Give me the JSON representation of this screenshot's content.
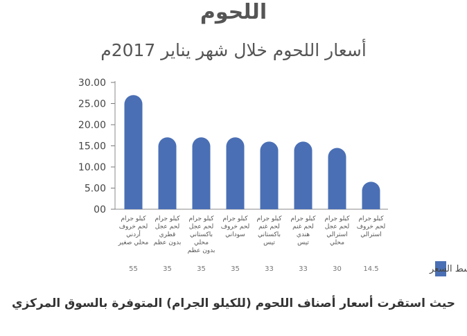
{
  "chart_data": {
    "type": "bar",
    "title": "اللحوم",
    "subtitle": "أسعار اللحوم خلال شهر يناير 2017م",
    "categories": [
      [
        "كيلو جرام",
        "لحم خروف",
        "أردني",
        "محلي صغير"
      ],
      [
        "كيلو جرام",
        "لحم عجل",
        "قطري",
        "بدون عظم"
      ],
      [
        "كيلو جرام",
        "لحم عجل",
        "باكستاني",
        "محلي",
        "بدون عظم"
      ],
      [
        "كيلو جرام",
        "لحم خروف",
        "سوداني"
      ],
      [
        "كيلو جرام",
        "لحم غنم",
        "باكستاني",
        "تيس"
      ],
      [
        "كيلو جرام",
        "لحم غنم",
        "هندي",
        "تيس"
      ],
      [
        "كيلو جرام",
        "لحم عجل",
        "استرالي",
        "محلي"
      ],
      [
        "كيلو جرام",
        "لحم خروف",
        "استرالي"
      ]
    ],
    "series": [
      {
        "name": "متوسط السعر",
        "values": [
          27,
          17,
          17,
          17,
          16,
          16,
          14.5,
          6.5
        ]
      }
    ],
    "table_values": [
      "55",
      "35",
      "35",
      "35",
      "33",
      "33",
      "30",
      "14.5"
    ],
    "y_ticks": [
      "30.00",
      "25.00",
      "20.00",
      "15.00",
      "10.00",
      "5.00",
      "00"
    ],
    "ylim": [
      0,
      30
    ],
    "bar_color": "#4a6fb5",
    "footer": "حيث استقرت أسعار أصناف اللحوم (للكيلو الجرام) المتوفرة بالسوق المركزي"
  }
}
